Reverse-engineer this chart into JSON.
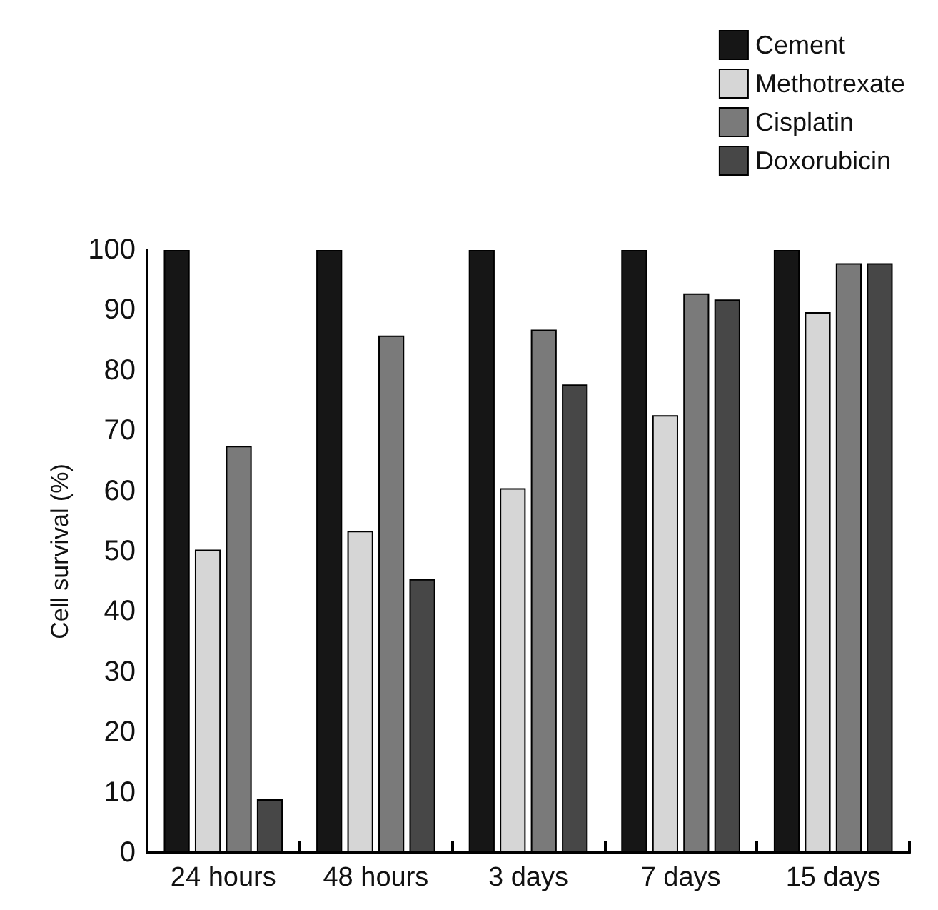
{
  "chart_data": {
    "type": "bar",
    "ylabel": "Cell survival (%)",
    "categories": [
      "24 hours",
      "48 hours",
      "3 days",
      "7 days",
      "15 days"
    ],
    "series": [
      {
        "name": "Cement",
        "color": "#161616",
        "values": [
          100,
          100,
          100,
          100,
          100
        ]
      },
      {
        "name": "Methotrexate",
        "color": "#d6d6d6",
        "values": [
          50.3,
          53.4,
          60.5,
          72.6,
          89.7
        ]
      },
      {
        "name": "Cisplatin",
        "color": "#7a7a7a",
        "values": [
          67.5,
          85.8,
          86.8,
          92.8,
          97.8
        ]
      },
      {
        "name": "Doxorubicin",
        "color": "#474747",
        "values": [
          8.9,
          45.4,
          77.7,
          91.8,
          97.8
        ]
      }
    ],
    "ylim": [
      0,
      100
    ],
    "yticks": [
      0,
      10,
      20,
      30,
      40,
      50,
      60,
      70,
      80,
      90,
      100
    ],
    "grid": false,
    "legend": "top right"
  }
}
